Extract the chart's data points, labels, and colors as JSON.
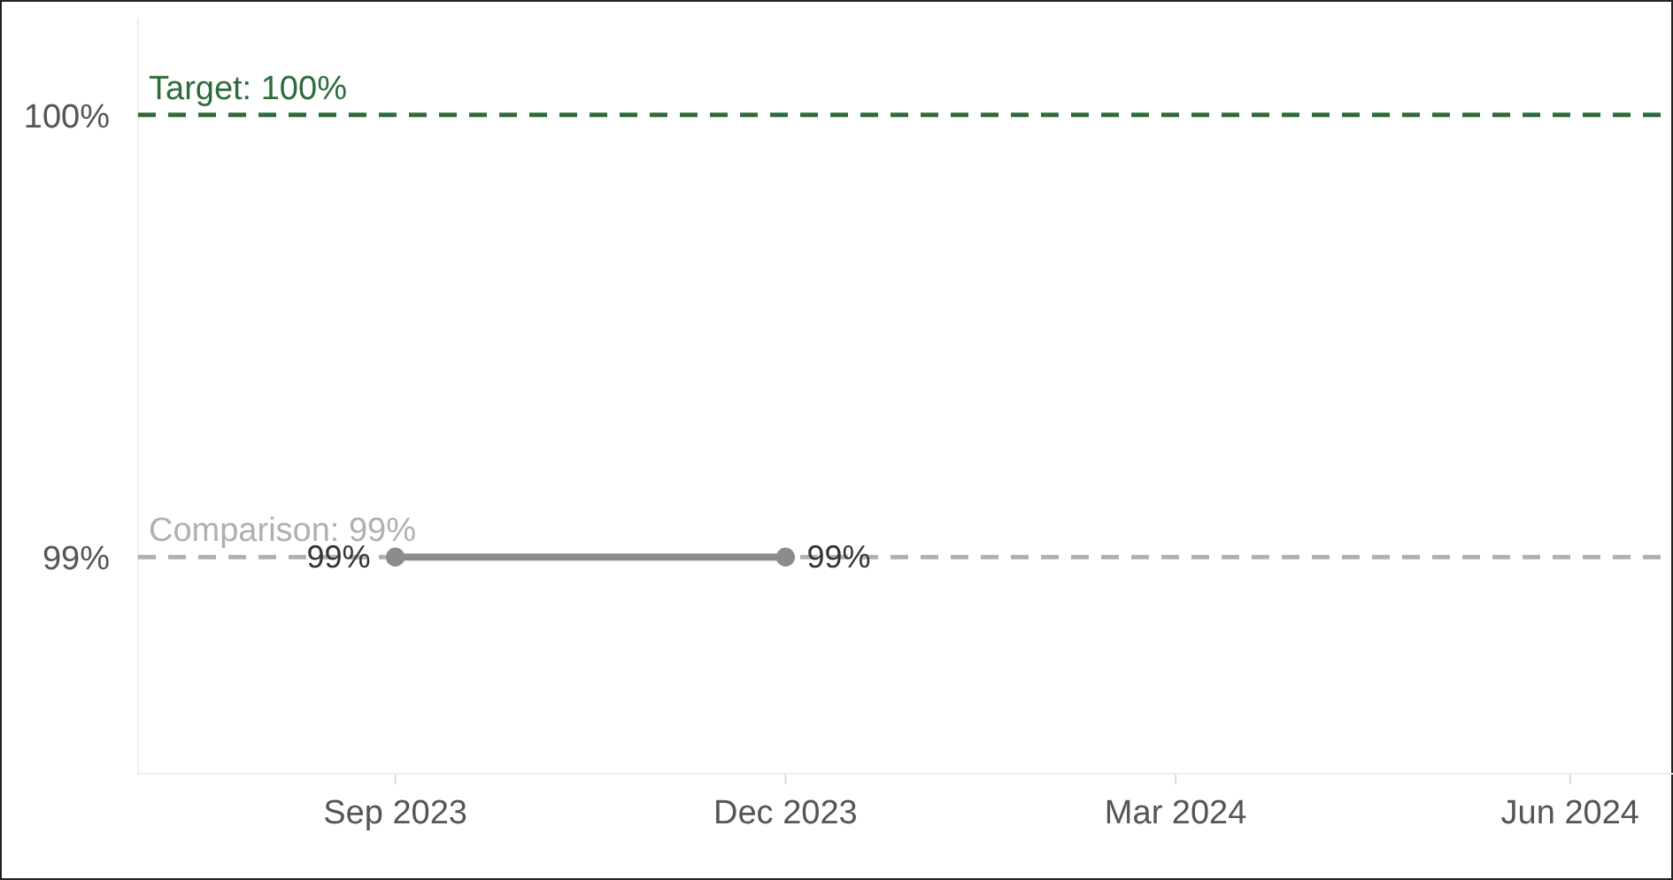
{
  "chart_data": {
    "type": "line",
    "x": [
      "2023-09-01",
      "2023-12-01"
    ],
    "series": [
      {
        "color": "#8c8c8c",
        "values": [
          99,
          99
        ],
        "value_labels": [
          "99%",
          "99%"
        ]
      }
    ],
    "marker": "circle",
    "xlim": [
      "2023-07-03",
      "2024-06-25"
    ],
    "xticks": [
      {
        "value": "2023-09-01",
        "label": "Sep 2023"
      },
      {
        "value": "2023-12-01",
        "label": "Dec 2023"
      },
      {
        "value": "2024-03-01",
        "label": "Mar 2024"
      },
      {
        "value": "2024-06-01",
        "label": "Jun 2024"
      }
    ],
    "ylim": [
      98.51,
      100.22
    ],
    "yticks": [
      {
        "value": 99,
        "label": "99%"
      },
      {
        "value": 100,
        "label": "100%"
      }
    ],
    "ref_lines": [
      {
        "axis": "y",
        "value": 100,
        "label": "Target: 100%",
        "color": "#2e6b3a",
        "line_style": "dashed"
      },
      {
        "axis": "y",
        "value": 99,
        "label": "Comparison: 99%",
        "color": "#b0b0b0",
        "line_style": "dashed"
      }
    ],
    "grid": false
  }
}
